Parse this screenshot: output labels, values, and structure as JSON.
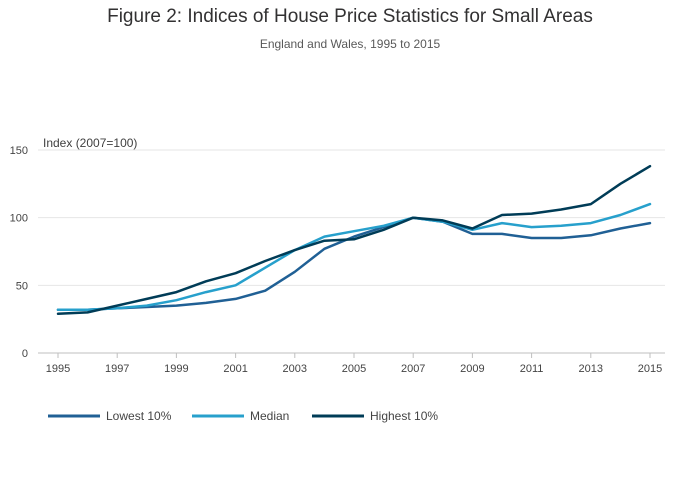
{
  "chart_data": {
    "type": "line",
    "title": "Figure 2: Indices of House Price Statistics for Small Areas",
    "subtitle": "England and Wales, 1995 to 2015",
    "ylabel": "Index (2007=100)",
    "xlabel": "",
    "x": [
      1995,
      1996,
      1997,
      1998,
      1999,
      2000,
      2001,
      2002,
      2003,
      2004,
      2005,
      2006,
      2007,
      2008,
      2009,
      2010,
      2011,
      2012,
      2013,
      2014,
      2015
    ],
    "xticks": [
      1995,
      1997,
      1999,
      2001,
      2003,
      2005,
      2007,
      2009,
      2011,
      2013,
      2015
    ],
    "yticks": [
      0,
      50,
      100,
      150
    ],
    "xlim": [
      1995,
      2015
    ],
    "ylim": [
      0,
      150
    ],
    "grid": true,
    "legend_position": "bottom-left",
    "series": [
      {
        "name": "Lowest 10%",
        "color": "#206095",
        "values": [
          32,
          32,
          33,
          34,
          35,
          37,
          40,
          46,
          60,
          77,
          86,
          93,
          100,
          97,
          88,
          88,
          85,
          85,
          87,
          92,
          96
        ]
      },
      {
        "name": "Median",
        "color": "#27A0CC",
        "values": [
          32,
          32,
          33,
          35,
          39,
          45,
          50,
          63,
          76,
          86,
          90,
          94,
          100,
          97,
          91,
          96,
          93,
          94,
          96,
          102,
          110
        ]
      },
      {
        "name": "Highest 10%",
        "color": "#003C57",
        "values": [
          29,
          30,
          35,
          40,
          45,
          53,
          59,
          68,
          76,
          83,
          84,
          91,
          100,
          98,
          92,
          102,
          103,
          106,
          110,
          125,
          138
        ]
      }
    ]
  }
}
